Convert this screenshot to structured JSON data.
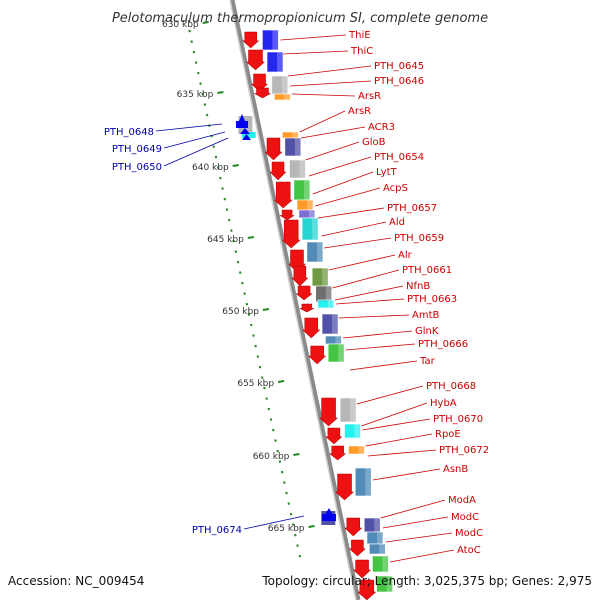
{
  "title": "Pelotomaculum thermopropionicum SI, complete genome",
  "footer": {
    "accession": "Accession: NC_009454",
    "summary": "Topology: circular; Length: 3,025,375 bp; Genes: 2,975"
  },
  "scale_labels": [
    "630 kbp",
    "635 kbp",
    "640 kbp",
    "645 kbp",
    "650 kbp",
    "655 kbp",
    "660 kbp",
    "665 kbp"
  ],
  "right_labels": [
    "ThiE",
    "ThiC",
    "PTH_0645",
    "PTH_0646",
    "ArsR",
    "ArsR",
    "ACR3",
    "GloB",
    "PTH_0654",
    "LytT",
    "AcpS",
    "PTH_0657",
    "Ald",
    "PTH_0659",
    "Alr",
    "PTH_0661",
    "NfnB",
    "PTH_0663",
    "AmtB",
    "GlnK",
    "PTH_0666",
    "Tar",
    "PTH_0668",
    "HybA",
    "PTH_0670",
    "RpoE",
    "PTH_0672",
    "AsnB",
    "ModA",
    "ModC",
    "ModC",
    "AtoC"
  ],
  "left_labels": [
    "PTH_0648",
    "PTH_0649",
    "PTH_0650",
    "PTH_0674"
  ],
  "colors": {
    "arrow": "#ee1111",
    "forward_arrow": "#0000ee",
    "right_label": "#cc0000",
    "left_label": "#0000aa",
    "connector": "#cc0000",
    "left_connector": "#0000aa",
    "backbone": "#999999",
    "ticks": "#228822"
  }
}
